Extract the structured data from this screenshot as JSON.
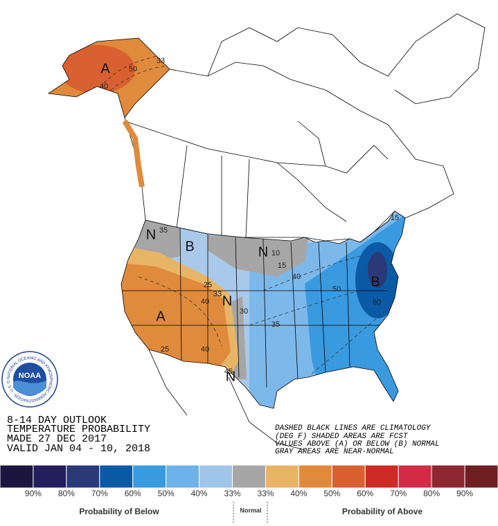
{
  "map": {
    "labels": [
      "A",
      "50",
      "40",
      "33",
      "N",
      "35",
      "B",
      "N",
      "10",
      "15",
      "40",
      "50",
      "60",
      "B",
      "15",
      "25",
      "33",
      "40",
      "30",
      "N",
      "A",
      "35",
      "25",
      "40",
      "45",
      "N"
    ]
  },
  "logo": {
    "name": "NOAA",
    "ring_text": "NATIONAL OCEANIC AND ATMOSPHERIC ADMINISTRATION · U.S. DEPARTMENT OF COMMERCE"
  },
  "outlook_text": [
    "8-14 DAY OUTLOOK",
    "TEMPERATURE PROBABILITY",
    "MADE  27 DEC 2017",
    "VALID  JAN 04 - 10, 2018"
  ],
  "notes": [
    "DASHED BLACK LINES ARE CLIMATOLOGY",
    "(DEG F) SHADED AREAS ARE FCST",
    "VALUES ABOVE (A) OR BELOW (B) NORMAL",
    "GRAY AREAS ARE NEAR-NORMAL"
  ],
  "legend": {
    "colors": [
      "#1c1540",
      "#231f5c",
      "#2a3a78",
      "#0b5aa6",
      "#3a9ae0",
      "#6fb2e8",
      "#9fc5e8",
      "#a6a6a6",
      "#e8b567",
      "#e08a3c",
      "#d96030",
      "#cc2b26",
      "#d12b45",
      "#8e2730",
      "#6e1f22"
    ],
    "tick_labels": [
      "90%",
      "80%",
      "70%",
      "60%",
      "50%",
      "40%",
      "33%",
      "33%",
      "40%",
      "50%",
      "60%",
      "70%",
      "80%",
      "90%"
    ],
    "below_label": "Probability of Below",
    "normal_label": "Normal",
    "above_label": "Probability of Above"
  }
}
